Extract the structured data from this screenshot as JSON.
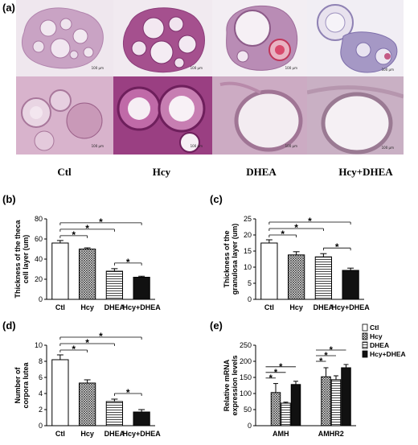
{
  "figure": {
    "panel_a": {
      "letter": "(a)",
      "groups": [
        "Ctl",
        "Hcy",
        "DHEA",
        "Hcy+DHEA"
      ],
      "scale_top": "100 μm",
      "scale_bottom": "100 μm"
    }
  },
  "chart_data": [
    {
      "panel": "(b)",
      "type": "bar",
      "categories": [
        "Ctl",
        "Hcy",
        "DHEA",
        "Hcy+DHEA"
      ],
      "values": [
        56,
        50,
        28,
        22
      ],
      "errors": [
        2.5,
        1.2,
        2.5,
        1.0
      ],
      "ylabel": "Thickness of the theca cell layer (um)",
      "ylim": [
        0,
        80
      ],
      "yticks": [
        0,
        20,
        40,
        60,
        80
      ],
      "bar_fills": [
        "white",
        "crosshatch",
        "hlines",
        "black"
      ],
      "significance": [
        "*",
        "*",
        "*",
        "*"
      ]
    },
    {
      "panel": "(c)",
      "type": "bar",
      "categories": [
        "Ctl",
        "Hcy",
        "DHEA",
        "Hcy+DHEA"
      ],
      "values": [
        17.5,
        13.8,
        13.2,
        9.0
      ],
      "errors": [
        1.0,
        1.0,
        1.0,
        0.7
      ],
      "ylabel": "Thickness of the granulosa layer (um)",
      "ylim": [
        0,
        25
      ],
      "yticks": [
        0,
        5,
        10,
        15,
        20,
        25
      ],
      "bar_fills": [
        "white",
        "crosshatch",
        "hlines",
        "black"
      ],
      "significance": [
        "*",
        "*",
        "*",
        "*"
      ]
    },
    {
      "panel": "(d)",
      "type": "bar",
      "categories": [
        "Ctl",
        "Hcy",
        "DHEA",
        "Hcy+DHEA"
      ],
      "values": [
        8.2,
        5.3,
        3.0,
        1.7
      ],
      "errors": [
        0.6,
        0.4,
        0.3,
        0.3
      ],
      "ylabel": "Number of corpora lutea",
      "ylim": [
        0,
        10
      ],
      "yticks": [
        0,
        2,
        4,
        6,
        8,
        10
      ],
      "bar_fills": [
        "white",
        "crosshatch",
        "hlines",
        "black"
      ],
      "significance": [
        "*",
        "*",
        "*",
        "*"
      ]
    },
    {
      "panel": "(e)",
      "type": "bar",
      "categories": [
        "AMH",
        "AMHR2"
      ],
      "series": [
        {
          "name": "Ctl",
          "values": [
            0,
            0
          ],
          "errors": [
            0,
            0
          ]
        },
        {
          "name": "Hcy",
          "values": [
            103,
            152
          ],
          "errors": [
            28,
            28
          ]
        },
        {
          "name": "DHEA",
          "values": [
            70,
            143
          ],
          "errors": [
            3,
            12
          ]
        },
        {
          "name": "Hcy+DHEA",
          "values": [
            128,
            180
          ],
          "errors": [
            10,
            10
          ]
        }
      ],
      "ylabel": "Relative mRNA expression levels",
      "ylim": [
        0,
        250
      ],
      "yticks": [
        0,
        50,
        100,
        150,
        200,
        250
      ],
      "bar_fills": [
        "white",
        "crosshatch",
        "hlines",
        "black"
      ],
      "legend_position": "top-right",
      "significance": [
        "*",
        "*",
        "*",
        "*",
        "*",
        "*"
      ]
    }
  ]
}
